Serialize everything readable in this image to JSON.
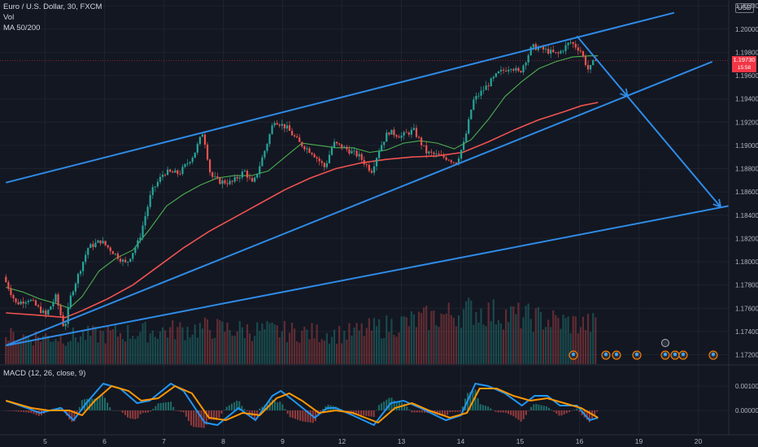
{
  "header": {
    "title": "Euro / U.S. Dollar, 30, FXCM",
    "vol_label": "Vol",
    "ma_label": "MA 50/200",
    "currency": "USD"
  },
  "price_label": {
    "value": "1.19730",
    "countdown": "15:58"
  },
  "macd": {
    "label": "MACD (12, 26, close, 9)",
    "ticks": [
      "0.00100",
      "0.00000"
    ]
  },
  "chart_data": {
    "type": "candlestick",
    "symbol": "EURUSD",
    "interval": "30",
    "x_ticks": [
      "5",
      "6",
      "7",
      "8",
      "9",
      "12",
      "13",
      "14",
      "15",
      "16",
      "19",
      "20"
    ],
    "y_ticks": [
      1.172,
      1.174,
      1.176,
      1.178,
      1.18,
      1.182,
      1.184,
      1.186,
      1.188,
      1.19,
      1.192,
      1.194,
      1.196,
      1.198,
      1.2,
      1.202
    ],
    "ylim": [
      1.1712,
      1.2025
    ],
    "current_price": 1.1973,
    "price_path": [
      [
        0,
        1.1787
      ],
      [
        1.5,
        1.1764
      ],
      [
        3,
        1.1768
      ],
      [
        5,
        1.1754
      ],
      [
        6.2,
        1.177
      ],
      [
        7.2,
        1.1742
      ],
      [
        8,
        1.1772
      ],
      [
        9,
        1.1792
      ],
      [
        10,
        1.1812
      ],
      [
        11.5,
        1.1818
      ],
      [
        13,
        1.1808
      ],
      [
        14.5,
        1.1798
      ],
      [
        16,
        1.1818
      ],
      [
        17.5,
        1.186
      ],
      [
        19,
        1.1877
      ],
      [
        20.8,
        1.1876
      ],
      [
        22.5,
        1.1892
      ],
      [
        23.6,
        1.1912
      ],
      [
        24.5,
        1.1874
      ],
      [
        25.5,
        1.1869
      ],
      [
        27,
        1.1868
      ],
      [
        28.5,
        1.1878
      ],
      [
        29.5,
        1.1866
      ],
      [
        31,
        1.1898
      ],
      [
        32,
        1.1922
      ],
      [
        33.5,
        1.1915
      ],
      [
        35,
        1.1902
      ],
      [
        36.5,
        1.1894
      ],
      [
        38,
        1.1881
      ],
      [
        39,
        1.1902
      ],
      [
        40.5,
        1.1897
      ],
      [
        42,
        1.1891
      ],
      [
        43.5,
        1.1878
      ],
      [
        44.5,
        1.1898
      ],
      [
        45.5,
        1.1912
      ],
      [
        47,
        1.1908
      ],
      [
        48.5,
        1.1913
      ],
      [
        50,
        1.1894
      ],
      [
        51,
        1.1892
      ],
      [
        52.5,
        1.1889
      ],
      [
        53.5,
        1.1885
      ],
      [
        54.5,
        1.1903
      ],
      [
        55.5,
        1.1938
      ],
      [
        57,
        1.195
      ],
      [
        58.5,
        1.1962
      ],
      [
        60,
        1.1968
      ],
      [
        61,
        1.1962
      ],
      [
        62.5,
        1.1985
      ],
      [
        64,
        1.1982
      ],
      [
        65.5,
        1.1978
      ],
      [
        67,
        1.1989
      ],
      [
        68.2,
        1.1982
      ],
      [
        69.2,
        1.1964
      ],
      [
        70,
        1.1975
      ]
    ],
    "ma_series": [
      {
        "name": "MA 50",
        "color": "#4caf50",
        "points": [
          [
            0,
            1.1778
          ],
          [
            2,
            1.1774
          ],
          [
            4,
            1.1768
          ],
          [
            6,
            1.1764
          ],
          [
            7.5,
            1.176
          ],
          [
            9,
            1.177
          ],
          [
            11,
            1.1792
          ],
          [
            13,
            1.1803
          ],
          [
            15,
            1.181
          ],
          [
            17,
            1.1828
          ],
          [
            19,
            1.1848
          ],
          [
            21,
            1.1858
          ],
          [
            23,
            1.1866
          ],
          [
            25,
            1.1872
          ],
          [
            27,
            1.1874
          ],
          [
            29,
            1.1874
          ],
          [
            31,
            1.1878
          ],
          [
            33,
            1.189
          ],
          [
            35,
            1.1902
          ],
          [
            37,
            1.19
          ],
          [
            39,
            1.1898
          ],
          [
            41,
            1.1898
          ],
          [
            43,
            1.1894
          ],
          [
            45,
            1.1896
          ],
          [
            47,
            1.1902
          ],
          [
            49,
            1.1904
          ],
          [
            51,
            1.1902
          ],
          [
            53,
            1.1897
          ],
          [
            55,
            1.1905
          ],
          [
            57,
            1.1922
          ],
          [
            59,
            1.1942
          ],
          [
            61,
            1.1955
          ],
          [
            63,
            1.1966
          ],
          [
            65,
            1.1972
          ],
          [
            67,
            1.1976
          ],
          [
            69,
            1.1977
          ],
          [
            70,
            1.1977
          ]
        ]
      },
      {
        "name": "MA 200",
        "color": "#ef5350",
        "points": [
          [
            0,
            1.1756
          ],
          [
            4,
            1.1754
          ],
          [
            7,
            1.1752
          ],
          [
            9,
            1.1758
          ],
          [
            12,
            1.1768
          ],
          [
            15,
            1.178
          ],
          [
            18,
            1.1796
          ],
          [
            21,
            1.1812
          ],
          [
            24,
            1.1826
          ],
          [
            27,
            1.1838
          ],
          [
            30,
            1.185
          ],
          [
            33,
            1.1862
          ],
          [
            36,
            1.1872
          ],
          [
            39,
            1.188
          ],
          [
            42,
            1.1885
          ],
          [
            45,
            1.1888
          ],
          [
            48,
            1.189
          ],
          [
            51,
            1.1891
          ],
          [
            54,
            1.1894
          ],
          [
            57,
            1.1903
          ],
          [
            60,
            1.1913
          ],
          [
            63,
            1.1922
          ],
          [
            66,
            1.1929
          ],
          [
            68,
            1.1934
          ],
          [
            70,
            1.1937
          ]
        ]
      }
    ],
    "trendlines": [
      {
        "points": [
          [
            0,
            1.1868
          ],
          [
            79,
            1.2014
          ]
        ]
      },
      {
        "points": [
          [
            0,
            1.1728
          ],
          [
            83.5,
            1.1972
          ]
        ]
      },
      {
        "points": [
          [
            0,
            1.1728
          ],
          [
            89,
            1.1853
          ]
        ]
      },
      {
        "points": [
          [
            67.5,
            1.1994
          ],
          [
            73.5,
            1.1942
          ],
          [
            84.5,
            1.1847
          ]
        ]
      }
    ],
    "macd_series": [
      {
        "name": "MACD",
        "color": "#2196f3",
        "points": [
          [
            0,
            0.0004
          ],
          [
            2.5,
            0.0001
          ],
          [
            4,
            -0.0001
          ],
          [
            6.5,
            0.0001
          ],
          [
            8,
            -0.0004
          ],
          [
            9.5,
            0.0003
          ],
          [
            11.5,
            0.0011
          ],
          [
            13.5,
            0.0009
          ],
          [
            15.5,
            0.0003
          ],
          [
            17,
            0.0004
          ],
          [
            19.5,
            0.0011
          ],
          [
            21,
            0.0008
          ],
          [
            23.5,
            -0.0005
          ],
          [
            25,
            -0.0006
          ],
          [
            27.5,
            0.0001
          ],
          [
            29.5,
            -0.0004
          ],
          [
            31.5,
            0.0006
          ],
          [
            32.5,
            0.0008
          ],
          [
            34,
            0.0004
          ],
          [
            36.5,
            -0.0003
          ],
          [
            38,
            0.0001
          ],
          [
            39,
            0.0001
          ],
          [
            41,
            -0.0002
          ],
          [
            43.5,
            -0.0006
          ],
          [
            45.5,
            0.0003
          ],
          [
            47,
            0.0004
          ],
          [
            49,
            0.0001
          ],
          [
            52,
            -0.0004
          ],
          [
            53.8,
            -0.0002
          ],
          [
            55.5,
            0.0011
          ],
          [
            57,
            0.001
          ],
          [
            59,
            0.0007
          ],
          [
            61,
            0.0002
          ],
          [
            62.5,
            0.0006
          ],
          [
            64,
            0.0006
          ],
          [
            65.5,
            0.0002
          ],
          [
            67.5,
            0.0002
          ],
          [
            69,
            -0.0004
          ],
          [
            70,
            -0.0003
          ]
        ]
      },
      {
        "name": "Signal",
        "color": "#ff9800",
        "points": [
          [
            0,
            0.0004
          ],
          [
            3,
            0.0001
          ],
          [
            5,
            0.0
          ],
          [
            7.5,
            0.0
          ],
          [
            9,
            -0.0002
          ],
          [
            10.5,
            0.0004
          ],
          [
            12.5,
            0.001
          ],
          [
            14.5,
            0.0008
          ],
          [
            16,
            0.0004
          ],
          [
            18,
            0.0005
          ],
          [
            20,
            0.001
          ],
          [
            22,
            0.0007
          ],
          [
            24,
            -0.0003
          ],
          [
            26,
            -0.0004
          ],
          [
            28,
            -0.0001
          ],
          [
            30,
            -0.0002
          ],
          [
            32,
            0.0005
          ],
          [
            33.5,
            0.0007
          ],
          [
            35,
            0.0004
          ],
          [
            37,
            -0.0001
          ],
          [
            39,
            0.0
          ],
          [
            41,
            -0.0001
          ],
          [
            44,
            -0.0005
          ],
          [
            46,
            0.0001
          ],
          [
            48,
            0.0003
          ],
          [
            50,
            0.0
          ],
          [
            52.5,
            -0.0003
          ],
          [
            54.5,
            -0.0001
          ],
          [
            56,
            0.0009
          ],
          [
            58,
            0.0009
          ],
          [
            60,
            0.0006
          ],
          [
            62,
            0.0004
          ],
          [
            64,
            0.0005
          ],
          [
            66,
            0.0003
          ],
          [
            68,
            0.0001
          ],
          [
            70,
            -0.0003
          ]
        ]
      }
    ],
    "volume_peak": [
      [
        7.5,
        0.25
      ],
      [
        23.5,
        0.42
      ],
      [
        40,
        0.3
      ],
      [
        55,
        0.78
      ],
      [
        68,
        0.5
      ]
    ],
    "grid": true,
    "legend": "top-left"
  }
}
